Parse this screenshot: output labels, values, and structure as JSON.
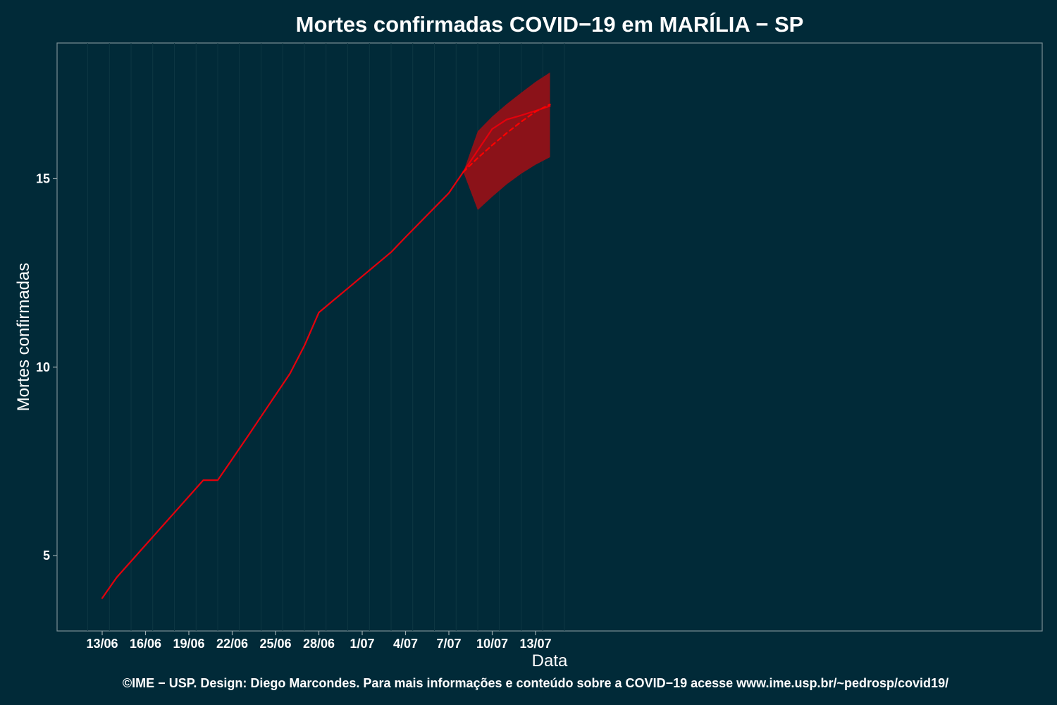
{
  "chart_data": {
    "type": "line",
    "title": "Mortes confirmadas COVID−19 em MARÍLIA − SP",
    "xlabel": "Data",
    "ylabel": "Mortes confirmadas",
    "caption": "©IME − USP. Design: Diego Marcondes. Para mais informações e conteúdo sobre a COVID−19 acesse www.ime.usp.br/~pedrosp/covid19/",
    "x_range": [
      "12/06",
      "15/07"
    ],
    "ylim": [
      3.0,
      18.6
    ],
    "y_ticks": [
      5,
      10,
      15
    ],
    "x_ticks": [
      "13/06",
      "16/06",
      "19/06",
      "22/06",
      "25/06",
      "28/06",
      "1/07",
      "4/07",
      "7/07",
      "10/07",
      "13/07"
    ],
    "grid": "vertical lines only",
    "series": [
      {
        "style": "solid",
        "color": "#e4000c",
        "points": [
          [
            "13/06",
            3.87
          ],
          [
            "14/06",
            4.42
          ],
          [
            "15/06",
            4.85
          ],
          [
            "16/06",
            5.28
          ],
          [
            "17/06",
            5.71
          ],
          [
            "18/06",
            6.14
          ],
          [
            "19/06",
            6.57
          ],
          [
            "20/06",
            7.0
          ],
          [
            "21/06",
            7.0
          ],
          [
            "22/06",
            7.56
          ],
          [
            "23/06",
            8.12
          ],
          [
            "24/06",
            8.69
          ],
          [
            "25/06",
            9.26
          ],
          [
            "26/06",
            9.83
          ],
          [
            "27/06",
            10.57
          ],
          [
            "28/06",
            11.45
          ],
          [
            "29/06",
            11.77
          ],
          [
            "30/06",
            12.09
          ],
          [
            "1/07",
            12.41
          ],
          [
            "2/07",
            12.73
          ],
          [
            "3/07",
            13.05
          ],
          [
            "4/07",
            13.45
          ],
          [
            "5/07",
            13.84
          ],
          [
            "6/07",
            14.23
          ],
          [
            "7/07",
            14.62
          ],
          [
            "8/07",
            15.18
          ],
          [
            "9/07",
            15.75
          ],
          [
            "10/07",
            16.32
          ],
          [
            "11/07",
            16.57
          ],
          [
            "12/07",
            16.68
          ],
          [
            "13/07",
            16.8
          ],
          [
            "14/07",
            16.93
          ]
        ]
      },
      {
        "style": "dashed",
        "color": "#ff0000",
        "points": [
          [
            "8/07",
            15.18
          ],
          [
            "9/07",
            15.55
          ],
          [
            "10/07",
            15.89
          ],
          [
            "11/07",
            16.21
          ],
          [
            "12/07",
            16.51
          ],
          [
            "13/07",
            16.78
          ],
          [
            "14/07",
            16.97
          ]
        ]
      }
    ],
    "band": {
      "color": "#8b1219",
      "points": [
        [
          "8/07",
          15.18,
          15.18
        ],
        [
          "9/07",
          14.17,
          16.26
        ],
        [
          "10/07",
          14.52,
          16.65
        ],
        [
          "11/07",
          14.85,
          16.98
        ],
        [
          "12/07",
          15.13,
          17.28
        ],
        [
          "13/07",
          15.37,
          17.57
        ],
        [
          "14/07",
          15.57,
          17.82
        ]
      ]
    }
  }
}
